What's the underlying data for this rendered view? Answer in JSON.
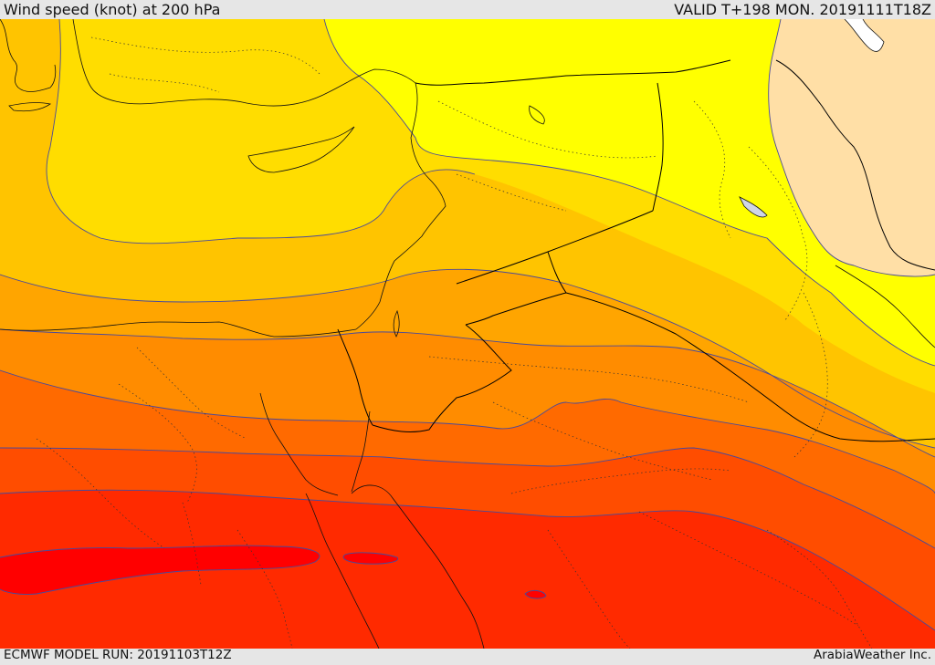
{
  "header": {
    "title": "Wind speed (knot) at 200 hPa",
    "valid": "VALID T+198 MON. 20191111T18Z"
  },
  "footer": {
    "model_run": "ECMWF MODEL RUN: 20191103T12Z",
    "credit": "ArabiaWeather Inc."
  },
  "colors": {
    "band_peach": "#ffdfa6",
    "band_yellow": "#ffff00",
    "band_gold": "#ffdd00",
    "band_amber": "#ffc400",
    "band_orange1": "#ffa500",
    "band_orange2": "#ff8c00",
    "band_orange3": "#ff6a00",
    "band_red1": "#ff4d00",
    "band_red2": "#ff2a00",
    "band_red3": "#ff0000",
    "contour_line": "#4a4a9a",
    "border_line": "#000000"
  }
}
